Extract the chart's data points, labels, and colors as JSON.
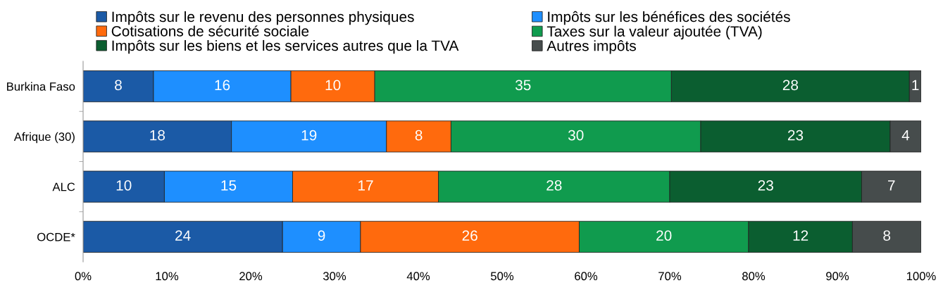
{
  "chart_data": {
    "type": "bar",
    "orientation": "horizontal",
    "stacked": true,
    "categories": [
      "Burkina Faso",
      "Afrique (30)",
      "ALC",
      "OCDE*"
    ],
    "series": [
      {
        "name": "Impôts sur le revenu des personnes physiques",
        "color": "#1b5aa6",
        "values": [
          8.4,
          17.7,
          9.7,
          23.8
        ],
        "value_labels": [
          "8",
          "18",
          "10",
          "24"
        ]
      },
      {
        "name": "Impôts sur les bénéfices des sociétés",
        "color": "#1e8fff",
        "values": [
          16.4,
          18.5,
          15.3,
          9.3
        ],
        "value_labels": [
          "16",
          "19",
          "15",
          "9"
        ]
      },
      {
        "name": "Cotisations de sécurité sociale",
        "color": "#ff6a0d",
        "values": [
          10.0,
          7.7,
          17.4,
          26.1
        ],
        "value_labels": [
          "10",
          "8",
          "17",
          "26"
        ]
      },
      {
        "name": "Taxes sur la valeur ajoutée (TVA)",
        "color": "#109b4e",
        "values": [
          35.4,
          29.8,
          27.6,
          20.2
        ],
        "value_labels": [
          "35",
          "30",
          "28",
          "20"
        ]
      },
      {
        "name": "Impôts sur les biens et les services autres que la TVA",
        "color": "#0b5e30",
        "values": [
          28.4,
          22.6,
          22.9,
          12.4
        ],
        "value_labels": [
          "28",
          "23",
          "23",
          "12"
        ]
      },
      {
        "name": "Autres impôts",
        "color": "#464c4c",
        "values": [
          1.4,
          3.7,
          7.1,
          8.2
        ],
        "value_labels": [
          "1",
          "4",
          "7",
          "8"
        ]
      }
    ],
    "xlim": [
      0,
      100
    ],
    "xticks": [
      {
        "value": 0,
        "label": "0%"
      },
      {
        "value": 10,
        "label": "10%"
      },
      {
        "value": 20,
        "label": "20%"
      },
      {
        "value": 30,
        "label": "30%"
      },
      {
        "value": 40,
        "label": "40%"
      },
      {
        "value": 50,
        "label": "50%"
      },
      {
        "value": 60,
        "label": "60%"
      },
      {
        "value": 70,
        "label": "70%"
      },
      {
        "value": 80,
        "label": "80%"
      },
      {
        "value": 90,
        "label": "90%"
      },
      {
        "value": 100,
        "label": "100%"
      }
    ],
    "legend": "top",
    "grid": false
  }
}
